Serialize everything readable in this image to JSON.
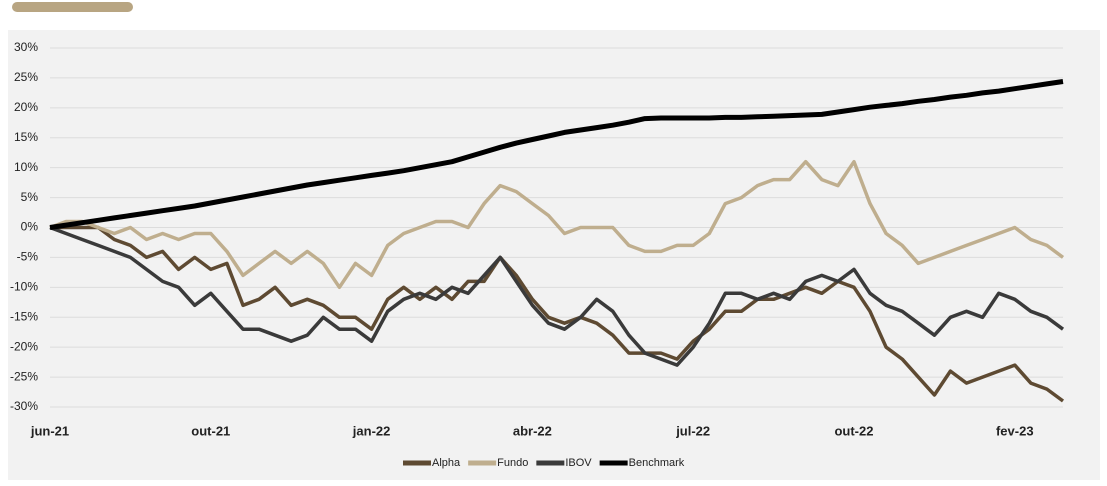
{
  "chart_data": {
    "type": "line",
    "categories": [
      "jun-21",
      null,
      null,
      null,
      null,
      null,
      null,
      null,
      null,
      null,
      "out-21",
      null,
      null,
      null,
      null,
      null,
      null,
      null,
      null,
      null,
      "jan-22",
      null,
      null,
      null,
      null,
      null,
      null,
      null,
      null,
      null,
      "abr-22",
      null,
      null,
      null,
      null,
      null,
      null,
      null,
      null,
      null,
      "jul-22",
      null,
      null,
      null,
      null,
      null,
      null,
      null,
      null,
      null,
      "out-22",
      null,
      null,
      null,
      null,
      null,
      null,
      null,
      null,
      null,
      "fev-23",
      null,
      null,
      null
    ],
    "series": [
      {
        "name": "Alpha",
        "color": "#5e4a32",
        "values": [
          0,
          0,
          0,
          0,
          -2,
          -3,
          -5,
          -4,
          -7,
          -5,
          -7,
          -6,
          -13,
          -12,
          -10,
          -13,
          -12,
          -13,
          -15,
          -15,
          -17,
          -12,
          -10,
          -12,
          -10,
          -12,
          -9,
          -9,
          -5,
          -8,
          -12,
          -15,
          -16,
          -15,
          -16,
          -18,
          -21,
          -21,
          -21,
          -22,
          -19,
          -17,
          -14,
          -14,
          -12,
          -12,
          -11,
          -10,
          -11,
          -9,
          -10,
          -14,
          -20,
          -22,
          -25,
          -28,
          -24,
          -26,
          -25,
          -24,
          -23,
          -26,
          -27,
          -29
        ]
      },
      {
        "name": "Fundo",
        "color": "#bfae8e",
        "values": [
          0,
          1,
          1,
          0,
          -1,
          0,
          -2,
          -1,
          -2,
          -1,
          -1,
          -4,
          -8,
          -6,
          -4,
          -6,
          -4,
          -6,
          -10,
          -6,
          -8,
          -3,
          -1,
          0,
          1,
          1,
          0,
          4,
          7,
          6,
          4,
          2,
          -1,
          0,
          0,
          0,
          -3,
          -4,
          -4,
          -3,
          -3,
          -1,
          4,
          5,
          7,
          8,
          8,
          11,
          8,
          7,
          11,
          4,
          -1,
          -3,
          -6,
          -5,
          -4,
          -3,
          -2,
          -1,
          0,
          -2,
          -3,
          -5
        ]
      },
      {
        "name": "IBOV",
        "color": "#3a3a3a",
        "values": [
          0,
          -1,
          -2,
          -3,
          -4,
          -5,
          -7,
          -9,
          -10,
          -13,
          -11,
          -14,
          -17,
          -17,
          -18,
          -19,
          -18,
          -15,
          -17,
          -17,
          -19,
          -14,
          -12,
          -11,
          -12,
          -10,
          -11,
          -8,
          -5,
          -9,
          -13,
          -16,
          -17,
          -15,
          -12,
          -14,
          -18,
          -21,
          -22,
          -23,
          -20,
          -16,
          -11,
          -11,
          -12,
          -11,
          -12,
          -9,
          -8,
          -9,
          -7,
          -11,
          -13,
          -14,
          -16,
          -18,
          -15,
          -14,
          -15,
          -11,
          -12,
          -14,
          -15,
          -17
        ]
      },
      {
        "name": "Benchmark",
        "color": "#000000",
        "values": [
          0,
          0.4,
          0.8,
          1.2,
          1.6,
          2,
          2.4,
          2.8,
          3.2,
          3.6,
          4.1,
          4.6,
          5.1,
          5.6,
          6.1,
          6.6,
          7.1,
          7.5,
          7.9,
          8.3,
          8.7,
          9.1,
          9.5,
          10,
          10.5,
          11,
          11.8,
          12.6,
          13.4,
          14.1,
          14.7,
          15.3,
          15.9,
          16.3,
          16.7,
          17.1,
          17.6,
          18.2,
          18.3,
          18.3,
          18.3,
          18.3,
          18.4,
          18.4,
          18.5,
          18.6,
          18.7,
          18.8,
          18.9,
          19.3,
          19.7,
          20.1,
          20.4,
          20.7,
          21.1,
          21.4,
          21.8,
          22.1,
          22.5,
          22.8,
          23.2,
          23.6,
          24,
          24.4
        ]
      }
    ],
    "ylim": [
      -30,
      30
    ],
    "yticks": [
      {
        "value": 30,
        "label": "30%"
      },
      {
        "value": 25,
        "label": "25%"
      },
      {
        "value": 20,
        "label": "20%"
      },
      {
        "value": 15,
        "label": "15%"
      },
      {
        "value": 10,
        "label": "10%"
      },
      {
        "value": 5,
        "label": "5%"
      },
      {
        "value": 0,
        "label": "0%"
      },
      {
        "value": -5,
        "label": "-5%"
      },
      {
        "value": -10,
        "label": "-10%"
      },
      {
        "value": -15,
        "label": "-15%"
      },
      {
        "value": -20,
        "label": "-20%"
      },
      {
        "value": -25,
        "label": "-25%"
      },
      {
        "value": -30,
        "label": "-30%"
      }
    ],
    "grid": true
  }
}
